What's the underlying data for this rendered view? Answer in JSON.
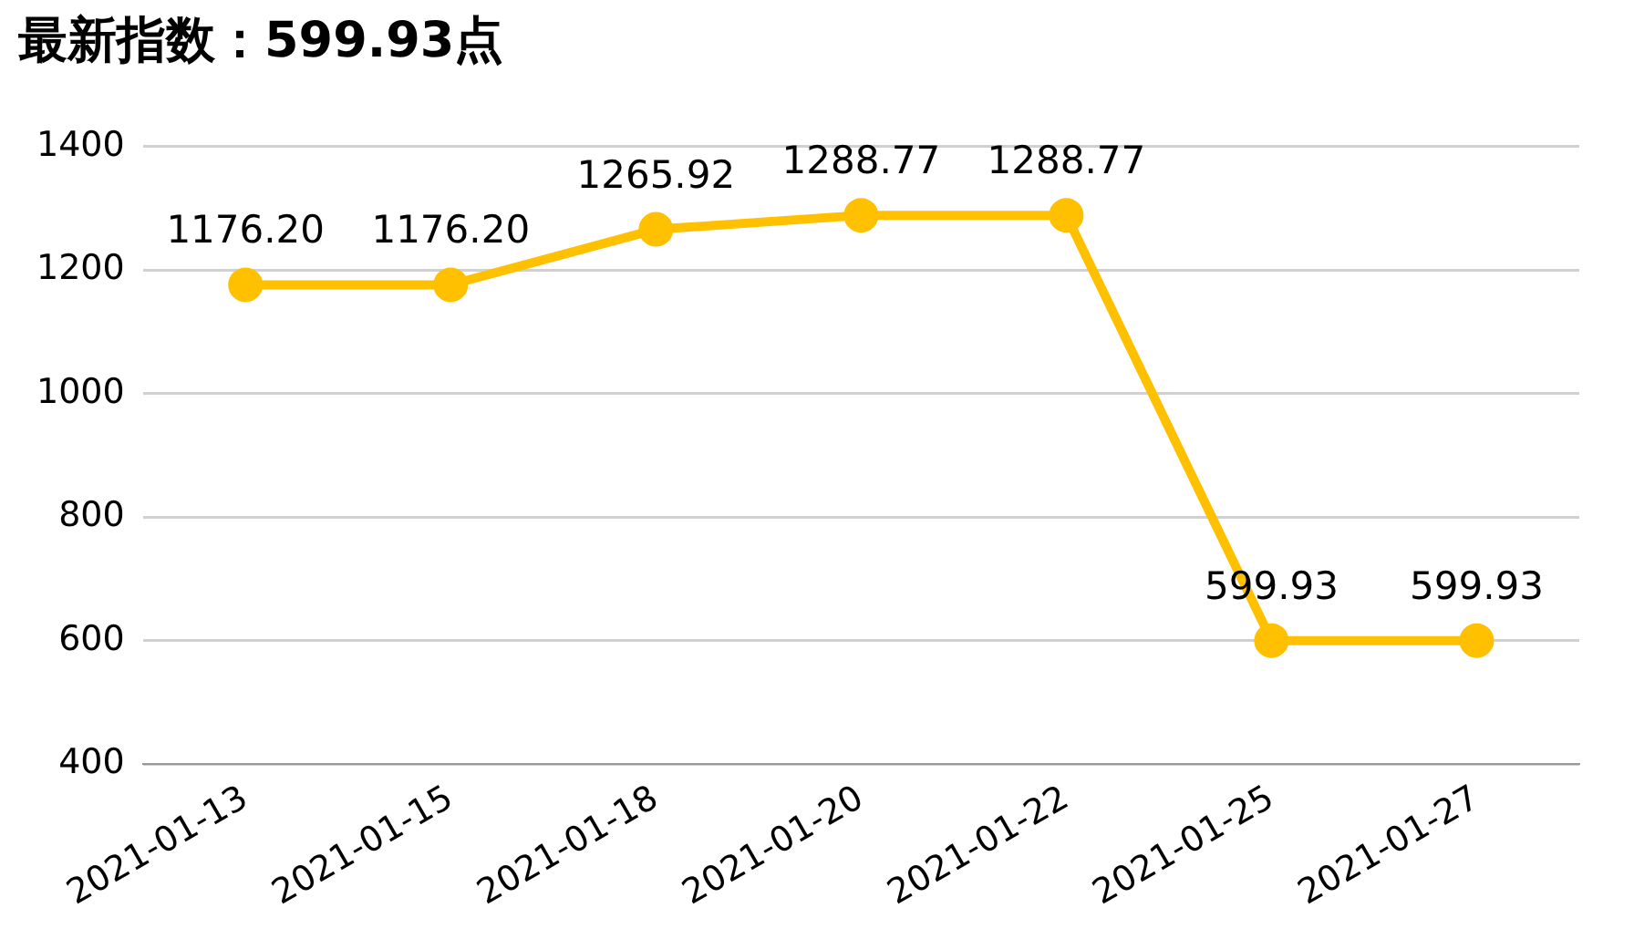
{
  "chart_data": {
    "type": "line",
    "title": "最新指数：599.93点",
    "categories": [
      "2021-01-13",
      "2021-01-15",
      "2021-01-18",
      "2021-01-20",
      "2021-01-22",
      "2021-01-25",
      "2021-01-27"
    ],
    "series": [
      {
        "color": "#ffc000",
        "values": [
          1176.2,
          1176.2,
          1265.92,
          1288.77,
          1288.77,
          599.93,
          599.93
        ],
        "value_labels": [
          "1176.20",
          "1176.20",
          "1265.92",
          "1288.77",
          "1288.77",
          "599.93",
          "599.93"
        ]
      }
    ],
    "ylim": [
      400,
      1400
    ],
    "yticks": [
      400,
      600,
      800,
      1000,
      1200,
      1400
    ],
    "grid": "y",
    "legend": false,
    "marker": "circle",
    "line_style": "solid"
  }
}
